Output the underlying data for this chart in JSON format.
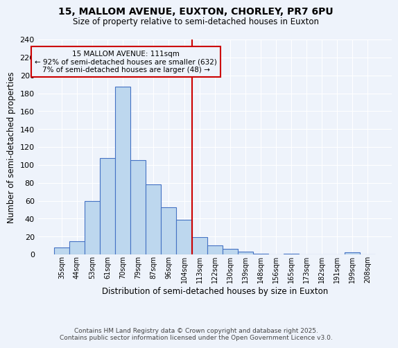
{
  "title1": "15, MALLOM AVENUE, EUXTON, CHORLEY, PR7 6PU",
  "title2": "Size of property relative to semi-detached houses in Euxton",
  "xlabel": "Distribution of semi-detached houses by size in Euxton",
  "ylabel": "Number of semi-detached properties",
  "categories": [
    "35sqm",
    "44sqm",
    "53sqm",
    "61sqm",
    "70sqm",
    "79sqm",
    "87sqm",
    "96sqm",
    "104sqm",
    "113sqm",
    "122sqm",
    "130sqm",
    "139sqm",
    "148sqm",
    "156sqm",
    "165sqm",
    "173sqm",
    "182sqm",
    "191sqm",
    "199sqm",
    "208sqm"
  ],
  "values": [
    8,
    15,
    60,
    108,
    187,
    105,
    78,
    53,
    39,
    19,
    10,
    6,
    3,
    1,
    0,
    1,
    0,
    0,
    0,
    2,
    0
  ],
  "bar_color": "#BDD7EE",
  "bar_edge_color": "#4472C4",
  "background_color": "#EEF3FB",
  "grid_color": "#ffffff",
  "vline_color": "#CC0000",
  "annotation_title": "15 MALLOM AVENUE: 111sqm",
  "annotation_line1": "← 92% of semi-detached houses are smaller (632)",
  "annotation_line2": "7% of semi-detached houses are larger (48) →",
  "annotation_box_edge": "#CC0000",
  "ylim": [
    0,
    240
  ],
  "yticks": [
    0,
    20,
    40,
    60,
    80,
    100,
    120,
    140,
    160,
    180,
    200,
    220,
    240
  ],
  "footer_line1": "Contains HM Land Registry data © Crown copyright and database right 2025.",
  "footer_line2": "Contains public sector information licensed under the Open Government Licence v3.0."
}
